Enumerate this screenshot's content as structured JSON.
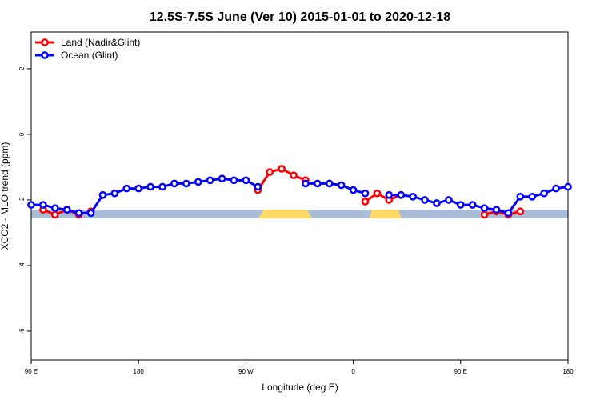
{
  "chart_data": {
    "type": "line",
    "title": "12.5S-7.5S June (Ver 10)   2015-01-01 to 2020-12-18",
    "x_label": "Longitude (deg E)",
    "y_label": "XCO2 - MLO trend (ppm)",
    "xlim": [
      90,
      540
    ],
    "xticks": [
      {
        "value": 90,
        "label": "90 E"
      },
      {
        "value": 180,
        "label": "180"
      },
      {
        "value": 270,
        "label": "90 W"
      },
      {
        "value": 360,
        "label": "0"
      },
      {
        "value": 450,
        "label": "90 E"
      },
      {
        "value": 540,
        "label": "180"
      }
    ],
    "ylim": [
      -6.88,
      3.12
    ],
    "yticks": [
      2,
      0,
      -2,
      -4,
      -6
    ],
    "legend": "top-left",
    "x": [
      90,
      100,
      110,
      120,
      130,
      140,
      150,
      160,
      170,
      180,
      190,
      200,
      210,
      220,
      230,
      240,
      250,
      260,
      270,
      280,
      290,
      300,
      310,
      320,
      330,
      340,
      350,
      360,
      370,
      380,
      390,
      400,
      410,
      420,
      430,
      440,
      450,
      460,
      470,
      480,
      490,
      500,
      510,
      520,
      530,
      540
    ],
    "series": [
      {
        "name": "Land (Nadir&Glint)",
        "color": "#ff0000",
        "values": [
          null,
          -2.3,
          -2.45,
          -2.3,
          -2.45,
          -2.35,
          null,
          null,
          null,
          null,
          null,
          null,
          null,
          null,
          null,
          null,
          null,
          null,
          null,
          -1.7,
          -1.15,
          -1.05,
          -1.25,
          -1.4,
          null,
          null,
          null,
          null,
          -2.05,
          -1.8,
          -2.0,
          -1.85,
          null,
          null,
          null,
          null,
          null,
          null,
          -2.45,
          -2.35,
          -2.45,
          -2.35,
          null,
          null,
          null,
          null
        ]
      },
      {
        "name": "Ocean (Glint)",
        "color": "#0000ff",
        "values": [
          -2.15,
          -2.15,
          -2.25,
          -2.3,
          -2.4,
          -2.4,
          -1.85,
          -1.8,
          -1.65,
          -1.65,
          -1.6,
          -1.6,
          -1.5,
          -1.5,
          -1.45,
          -1.4,
          -1.35,
          -1.4,
          -1.4,
          -1.6,
          null,
          null,
          null,
          -1.5,
          -1.5,
          -1.5,
          -1.55,
          -1.7,
          -1.8,
          null,
          -1.85,
          -1.85,
          -1.9,
          -2.0,
          -2.1,
          -2.0,
          -2.15,
          -2.15,
          -2.25,
          -2.3,
          -2.4,
          -1.9,
          -1.9,
          -1.8,
          -1.65,
          -1.6
        ]
      }
    ]
  }
}
